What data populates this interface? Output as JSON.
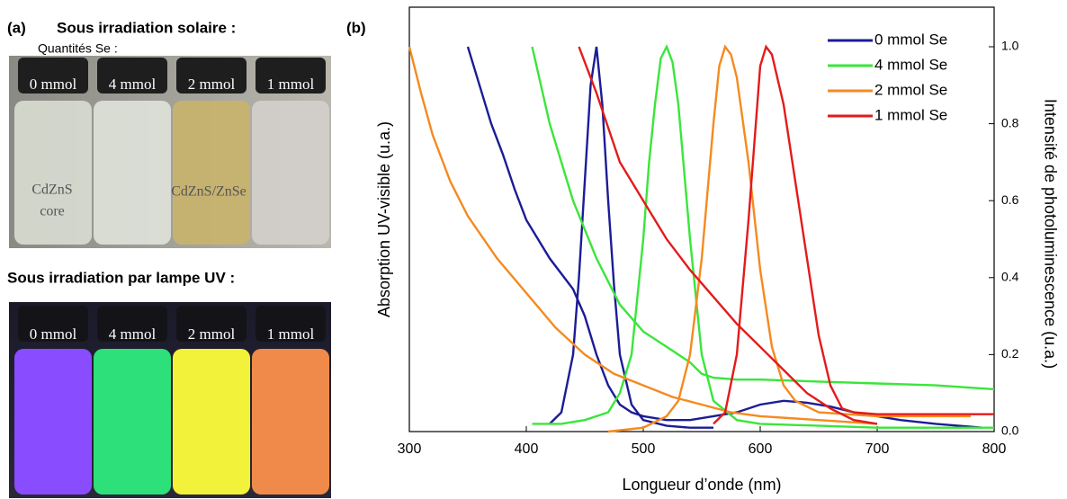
{
  "panel_a": {
    "label": "(a)",
    "title": "Sous irradiation solaire :",
    "subtitle": "Quantités Se :",
    "sun_vials": [
      "0 mmol",
      "4 mmol",
      "2 mmol",
      "1 mmol"
    ],
    "core_label": [
      "CdZnS",
      "core"
    ],
    "shell_label": "CdZnS/ZnSe",
    "uv_title": "Sous irradiation par lampe UV :",
    "uv_vials": [
      "0 mmol",
      "4 mmol",
      "2 mmol",
      "1 mmol"
    ]
  },
  "chart_data": {
    "type": "line",
    "label": "(b)",
    "x_label": "Longueur d’onde (nm)",
    "y_label": "Absorption UV-visible (u.a.)",
    "y2_label": "Intensité de photoluminescence (u.a.)",
    "xlim": [
      300,
      800
    ],
    "xticks": [
      300,
      400,
      500,
      600,
      700,
      800
    ],
    "ylim": [
      0,
      1
    ],
    "y2lim": [
      0,
      1
    ],
    "y2ticks": [
      {
        "value": 0,
        "label": "0.0"
      },
      0.2,
      0.4,
      0.6,
      0.8,
      {
        "value": 1,
        "label": "1.0"
      }
    ],
    "legend": "upper right",
    "series": [
      {
        "name": "0 mmol Se",
        "color": "#1c1c96",
        "absorption": {
          "x": [
            350,
            360,
            370,
            380,
            390,
            400,
            410,
            420,
            430,
            440,
            450,
            460,
            470,
            480,
            490,
            500,
            520,
            540,
            560,
            580,
            600,
            620,
            640,
            660,
            680,
            700,
            720,
            750,
            790
          ],
          "values": [
            1.0,
            0.9,
            0.8,
            0.72,
            0.63,
            0.55,
            0.5,
            0.45,
            0.41,
            0.37,
            0.3,
            0.2,
            0.12,
            0.07,
            0.05,
            0.04,
            0.03,
            0.03,
            0.04,
            0.05,
            0.07,
            0.08,
            0.075,
            0.065,
            0.05,
            0.04,
            0.03,
            0.02,
            0.01
          ]
        },
        "photoluminescence": {
          "axis": "y2",
          "x": [
            420,
            430,
            440,
            445,
            450,
            455,
            460,
            465,
            470,
            475,
            480,
            490,
            500,
            520,
            540,
            560
          ],
          "values": [
            0.02,
            0.05,
            0.2,
            0.4,
            0.65,
            0.9,
            1.0,
            0.85,
            0.6,
            0.38,
            0.2,
            0.07,
            0.03,
            0.015,
            0.01,
            0.01
          ]
        }
      },
      {
        "name": "4 mmol Se",
        "color": "#3ae63a",
        "absorption": {
          "x": [
            405,
            420,
            440,
            460,
            480,
            500,
            520,
            540,
            550,
            560,
            580,
            600,
            650,
            700,
            750,
            800
          ],
          "values": [
            1.0,
            0.8,
            0.6,
            0.45,
            0.33,
            0.26,
            0.22,
            0.18,
            0.15,
            0.14,
            0.135,
            0.135,
            0.13,
            0.125,
            0.12,
            0.11
          ]
        },
        "photoluminescence": {
          "axis": "y2",
          "x": [
            405,
            430,
            450,
            470,
            480,
            490,
            500,
            505,
            510,
            515,
            520,
            525,
            530,
            540,
            550,
            560,
            580,
            600,
            700,
            800
          ],
          "values": [
            0.02,
            0.02,
            0.03,
            0.05,
            0.1,
            0.2,
            0.5,
            0.7,
            0.85,
            0.97,
            1.0,
            0.96,
            0.85,
            0.5,
            0.2,
            0.08,
            0.03,
            0.02,
            0.01,
            0.01
          ]
        }
      },
      {
        "name": "2 mmol Se",
        "color": "#f58a1f",
        "absorption": {
          "x": [
            300,
            310,
            320,
            335,
            350,
            375,
            400,
            425,
            450,
            475,
            500,
            525,
            550,
            575,
            600,
            650,
            700
          ],
          "values": [
            1.0,
            0.88,
            0.77,
            0.65,
            0.56,
            0.45,
            0.36,
            0.27,
            0.2,
            0.15,
            0.12,
            0.09,
            0.07,
            0.05,
            0.04,
            0.03,
            0.02
          ]
        },
        "photoluminescence": {
          "axis": "y2",
          "x": [
            470,
            500,
            520,
            530,
            540,
            550,
            560,
            565,
            570,
            575,
            580,
            590,
            600,
            610,
            620,
            630,
            650,
            700,
            750,
            780
          ],
          "values": [
            0.0,
            0.01,
            0.04,
            0.08,
            0.2,
            0.45,
            0.8,
            0.95,
            1.0,
            0.98,
            0.92,
            0.7,
            0.42,
            0.22,
            0.12,
            0.08,
            0.05,
            0.04,
            0.04,
            0.04
          ]
        }
      },
      {
        "name": "1 mmol Se",
        "color": "#e31b1b",
        "absorption": {
          "x": [
            445,
            460,
            480,
            500,
            520,
            540,
            560,
            580,
            600,
            620,
            640,
            660,
            680,
            700
          ],
          "values": [
            1.0,
            0.88,
            0.7,
            0.6,
            0.5,
            0.42,
            0.35,
            0.28,
            0.22,
            0.16,
            0.1,
            0.06,
            0.03,
            0.02
          ]
        },
        "photoluminescence": {
          "axis": "y2",
          "x": [
            560,
            570,
            580,
            590,
            600,
            605,
            610,
            620,
            630,
            640,
            650,
            660,
            670,
            680,
            700,
            750,
            800
          ],
          "values": [
            0.02,
            0.05,
            0.2,
            0.55,
            0.95,
            1.0,
            0.98,
            0.85,
            0.65,
            0.45,
            0.25,
            0.12,
            0.06,
            0.05,
            0.045,
            0.045,
            0.045
          ]
        }
      }
    ]
  }
}
